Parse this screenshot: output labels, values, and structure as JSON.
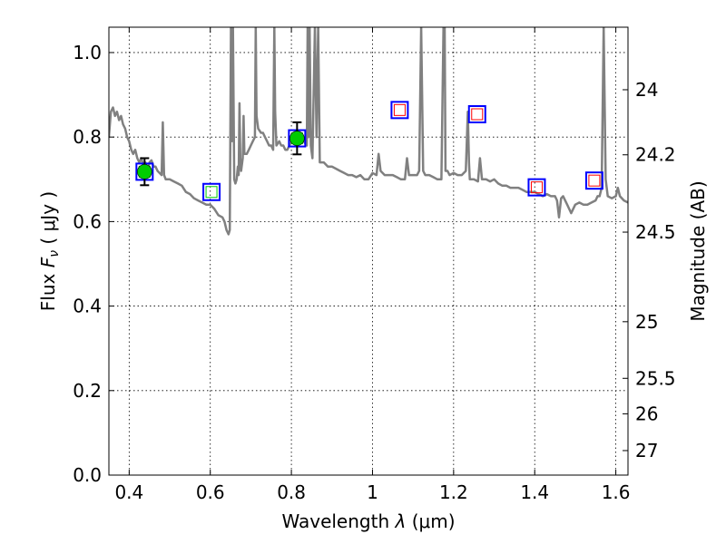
{
  "chart_data": {
    "type": "line",
    "xlabel_text": "Wavelength",
    "xlabel_symbol": "λ",
    "xlabel_unit": "(μm)",
    "ylabel_text": "Flux",
    "ylabel_symbol": "F",
    "ylabel_subscript": "ν",
    "ylabel_unit": "( μJy )",
    "y2label": "Magnitude (AB)",
    "xlim": [
      0.35,
      1.63
    ],
    "ylim": [
      0.0,
      1.06
    ],
    "x_ticks": [
      0.4,
      0.6,
      0.8,
      1.0,
      1.2,
      1.4,
      1.6
    ],
    "x_tick_labels": [
      "0.4",
      "0.6",
      "0.8",
      "1",
      "1.2",
      "1.4",
      "1.6"
    ],
    "y_ticks": [
      0.0,
      0.2,
      0.4,
      0.6,
      0.8,
      1.0
    ],
    "y_tick_labels": [
      "0.0",
      "0.2",
      "0.4",
      "0.6",
      "0.8",
      "1.0"
    ],
    "y2_ticks": [
      {
        "label": "24",
        "flux": 0.912
      },
      {
        "label": "24.2",
        "flux": 0.758
      },
      {
        "label": "24.5",
        "flux": 0.575
      },
      {
        "label": "25",
        "flux": 0.363
      },
      {
        "label": "25.5",
        "flux": 0.229
      },
      {
        "label": "26",
        "flux": 0.145
      },
      {
        "label": "27",
        "flux": 0.058
      }
    ],
    "grid": true,
    "colors": {
      "spectrum": "#808080",
      "green_fill": "#00cc00",
      "square_blue": "#0000ff",
      "square_red": "#ff0000",
      "square_green": "#00cc00"
    },
    "series": [
      {
        "type": "line",
        "points": [
          [
            0.35,
            0.8
          ],
          [
            0.355,
            0.86
          ],
          [
            0.36,
            0.87
          ],
          [
            0.365,
            0.85
          ],
          [
            0.37,
            0.86
          ],
          [
            0.375,
            0.84
          ],
          [
            0.38,
            0.85
          ],
          [
            0.385,
            0.83
          ],
          [
            0.39,
            0.82
          ],
          [
            0.395,
            0.8
          ],
          [
            0.4,
            0.79
          ],
          [
            0.405,
            0.77
          ],
          [
            0.41,
            0.76
          ],
          [
            0.415,
            0.77
          ],
          [
            0.42,
            0.75
          ],
          [
            0.425,
            0.74
          ],
          [
            0.43,
            0.75
          ],
          [
            0.435,
            0.73
          ],
          [
            0.44,
            0.74
          ],
          [
            0.445,
            0.72
          ],
          [
            0.45,
            0.74
          ],
          [
            0.455,
            0.745
          ],
          [
            0.46,
            0.73
          ],
          [
            0.465,
            0.73
          ],
          [
            0.47,
            0.72
          ],
          [
            0.48,
            0.71
          ],
          [
            0.483,
            0.835
          ],
          [
            0.486,
            0.71
          ],
          [
            0.49,
            0.7
          ],
          [
            0.5,
            0.7
          ],
          [
            0.51,
            0.695
          ],
          [
            0.52,
            0.69
          ],
          [
            0.53,
            0.685
          ],
          [
            0.54,
            0.67
          ],
          [
            0.55,
            0.665
          ],
          [
            0.56,
            0.655
          ],
          [
            0.57,
            0.65
          ],
          [
            0.58,
            0.645
          ],
          [
            0.59,
            0.64
          ],
          [
            0.6,
            0.64
          ],
          [
            0.61,
            0.63
          ],
          [
            0.62,
            0.615
          ],
          [
            0.63,
            0.61
          ],
          [
            0.635,
            0.6
          ],
          [
            0.64,
            0.58
          ],
          [
            0.645,
            0.57
          ],
          [
            0.648,
            0.58
          ],
          [
            0.651,
            1.06
          ],
          [
            0.653,
            0.79
          ],
          [
            0.656,
            1.06
          ],
          [
            0.659,
            0.7
          ],
          [
            0.662,
            0.69
          ],
          [
            0.665,
            0.7
          ],
          [
            0.668,
            0.73
          ],
          [
            0.67,
            0.71
          ],
          [
            0.672,
            0.88
          ],
          [
            0.674,
            0.75
          ],
          [
            0.676,
            0.72
          ],
          [
            0.68,
            0.75
          ],
          [
            0.682,
            0.85
          ],
          [
            0.684,
            0.76
          ],
          [
            0.69,
            0.76
          ],
          [
            0.695,
            0.77
          ],
          [
            0.7,
            0.78
          ],
          [
            0.705,
            0.79
          ],
          [
            0.71,
            0.8
          ],
          [
            0.712,
            1.06
          ],
          [
            0.714,
            0.85
          ],
          [
            0.718,
            0.82
          ],
          [
            0.725,
            0.81
          ],
          [
            0.73,
            0.81
          ],
          [
            0.735,
            0.8
          ],
          [
            0.74,
            0.79
          ],
          [
            0.745,
            0.78
          ],
          [
            0.75,
            0.78
          ],
          [
            0.755,
            0.77
          ],
          [
            0.758,
            1.06
          ],
          [
            0.76,
            0.86
          ],
          [
            0.763,
            0.78
          ],
          [
            0.77,
            0.79
          ],
          [
            0.775,
            0.78
          ],
          [
            0.78,
            0.78
          ],
          [
            0.785,
            0.77
          ],
          [
            0.79,
            0.77
          ],
          [
            0.795,
            0.78
          ],
          [
            0.8,
            0.79
          ],
          [
            0.805,
            0.8
          ],
          [
            0.81,
            0.8
          ],
          [
            0.815,
            0.79
          ],
          [
            0.82,
            0.8
          ],
          [
            0.83,
            0.79
          ],
          [
            0.838,
            0.78
          ],
          [
            0.84,
            1.06
          ],
          [
            0.842,
            0.8
          ],
          [
            0.845,
            1.06
          ],
          [
            0.848,
            0.78
          ],
          [
            0.852,
            0.75
          ],
          [
            0.858,
            1.06
          ],
          [
            0.862,
            0.8
          ],
          [
            0.866,
            1.06
          ],
          [
            0.87,
            0.74
          ],
          [
            0.88,
            0.74
          ],
          [
            0.89,
            0.73
          ],
          [
            0.9,
            0.73
          ],
          [
            0.91,
            0.725
          ],
          [
            0.92,
            0.72
          ],
          [
            0.93,
            0.715
          ],
          [
            0.94,
            0.71
          ],
          [
            0.95,
            0.71
          ],
          [
            0.96,
            0.705
          ],
          [
            0.97,
            0.71
          ],
          [
            0.98,
            0.7
          ],
          [
            0.99,
            0.7
          ],
          [
            1.0,
            0.715
          ],
          [
            1.01,
            0.71
          ],
          [
            1.015,
            0.76
          ],
          [
            1.02,
            0.72
          ],
          [
            1.03,
            0.71
          ],
          [
            1.04,
            0.71
          ],
          [
            1.05,
            0.71
          ],
          [
            1.06,
            0.705
          ],
          [
            1.07,
            0.7
          ],
          [
            1.08,
            0.7
          ],
          [
            1.085,
            0.75
          ],
          [
            1.09,
            0.71
          ],
          [
            1.1,
            0.71
          ],
          [
            1.11,
            0.71
          ],
          [
            1.115,
            0.72
          ],
          [
            1.12,
            1.06
          ],
          [
            1.125,
            0.72
          ],
          [
            1.13,
            0.71
          ],
          [
            1.14,
            0.71
          ],
          [
            1.15,
            0.705
          ],
          [
            1.16,
            0.7
          ],
          [
            1.17,
            0.7
          ],
          [
            1.175,
            1.06
          ],
          [
            1.178,
            1.06
          ],
          [
            1.18,
            0.72
          ],
          [
            1.185,
            0.72
          ],
          [
            1.19,
            0.71
          ],
          [
            1.2,
            0.715
          ],
          [
            1.21,
            0.71
          ],
          [
            1.22,
            0.71
          ],
          [
            1.23,
            0.72
          ],
          [
            1.235,
            0.86
          ],
          [
            1.238,
            0.74
          ],
          [
            1.24,
            0.7
          ],
          [
            1.25,
            0.7
          ],
          [
            1.26,
            0.695
          ],
          [
            1.265,
            0.75
          ],
          [
            1.27,
            0.7
          ],
          [
            1.28,
            0.7
          ],
          [
            1.29,
            0.695
          ],
          [
            1.3,
            0.7
          ],
          [
            1.31,
            0.69
          ],
          [
            1.32,
            0.685
          ],
          [
            1.33,
            0.685
          ],
          [
            1.34,
            0.68
          ],
          [
            1.35,
            0.68
          ],
          [
            1.36,
            0.68
          ],
          [
            1.37,
            0.675
          ],
          [
            1.38,
            0.67
          ],
          [
            1.39,
            0.67
          ],
          [
            1.4,
            0.67
          ],
          [
            1.41,
            0.665
          ],
          [
            1.42,
            0.66
          ],
          [
            1.43,
            0.665
          ],
          [
            1.44,
            0.66
          ],
          [
            1.45,
            0.66
          ],
          [
            1.455,
            0.65
          ],
          [
            1.46,
            0.61
          ],
          [
            1.465,
            0.655
          ],
          [
            1.47,
            0.66
          ],
          [
            1.48,
            0.64
          ],
          [
            1.49,
            0.62
          ],
          [
            1.5,
            0.64
          ],
          [
            1.51,
            0.645
          ],
          [
            1.52,
            0.64
          ],
          [
            1.53,
            0.64
          ],
          [
            1.54,
            0.645
          ],
          [
            1.55,
            0.65
          ],
          [
            1.555,
            0.66
          ],
          [
            1.56,
            0.66
          ],
          [
            1.565,
            0.68
          ],
          [
            1.57,
            1.06
          ],
          [
            1.575,
            0.7
          ],
          [
            1.58,
            0.66
          ],
          [
            1.59,
            0.655
          ],
          [
            1.6,
            0.66
          ],
          [
            1.605,
            0.68
          ],
          [
            1.61,
            0.66
          ],
          [
            1.62,
            0.65
          ],
          [
            1.63,
            0.645
          ]
        ]
      },
      {
        "type": "squares",
        "inner": "green",
        "points": [
          [
            0.438,
            0.718
          ],
          [
            0.603,
            0.67
          ],
          [
            0.814,
            0.797
          ]
        ]
      },
      {
        "type": "squares",
        "inner": "red",
        "points": [
          [
            1.067,
            0.864
          ],
          [
            1.258,
            0.854
          ],
          [
            1.405,
            0.681
          ],
          [
            1.547,
            0.697
          ]
        ]
      },
      {
        "type": "circles",
        "points": [
          [
            0.438,
            0.718,
            0.032
          ],
          [
            0.814,
            0.797,
            0.038
          ]
        ]
      }
    ]
  }
}
